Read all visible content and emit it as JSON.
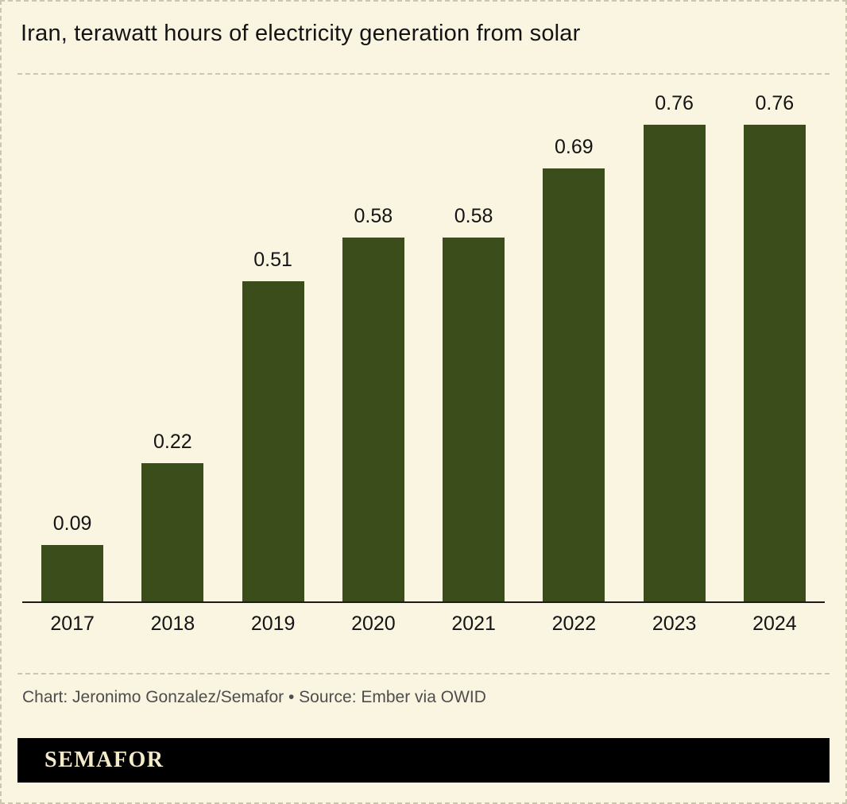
{
  "title": "Iran, terawatt hours of electricity generation from solar",
  "credit": "Chart: Jeronimo Gonzalez/Semafor • Source: Ember via OWID",
  "footer": {
    "brand": "SEMAFOR"
  },
  "colors": {
    "background": "#FAF5E1",
    "bar": "#3A4D1B",
    "text": "#141414",
    "credit_text": "#4D4D4D",
    "divider": "#CCC6AF",
    "footer_bg": "#000000",
    "footer_text": "#F5EBC8"
  },
  "chart_data": {
    "type": "bar",
    "title": "Iran, terawatt hours of electricity generation from solar",
    "categories": [
      "2017",
      "2018",
      "2019",
      "2020",
      "2021",
      "2022",
      "2023",
      "2024"
    ],
    "values": [
      0.09,
      0.22,
      0.51,
      0.58,
      0.58,
      0.69,
      0.76,
      0.76
    ],
    "xlabel": "",
    "ylabel": "",
    "ylim": [
      0,
      0.8
    ],
    "grid": false,
    "legend": "none",
    "value_labels": true,
    "source": "Ember via OWID"
  }
}
